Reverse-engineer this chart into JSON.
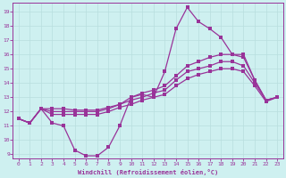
{
  "xlabel": "Windchill (Refroidissement éolien,°C)",
  "ylabel": "",
  "xlim_min": -0.5,
  "xlim_max": 23.5,
  "ylim_min": 8.7,
  "ylim_max": 19.6,
  "yticks": [
    9,
    10,
    11,
    12,
    13,
    14,
    15,
    16,
    17,
    18,
    19
  ],
  "xticks": [
    0,
    1,
    2,
    3,
    4,
    5,
    6,
    7,
    8,
    9,
    10,
    11,
    12,
    13,
    14,
    15,
    16,
    17,
    18,
    19,
    20,
    21,
    22,
    23
  ],
  "background_color": "#cef0f0",
  "line_color": "#993399",
  "grid_color": "#b8dede",
  "line1_y": [
    11.5,
    11.2,
    12.2,
    11.2,
    11.0,
    9.3,
    8.9,
    8.9,
    9.5,
    11.0,
    13.0,
    13.2,
    13.0,
    14.8,
    17.8,
    19.3,
    18.3,
    17.8,
    17.2,
    16.0,
    16.0,
    14.2,
    12.8,
    13.0
  ],
  "line2_y": [
    11.5,
    11.2,
    12.2,
    12.2,
    12.2,
    12.1,
    12.1,
    12.1,
    12.3,
    12.5,
    13.0,
    13.3,
    13.5,
    13.8,
    14.5,
    15.2,
    15.5,
    15.8,
    16.0,
    16.0,
    15.8,
    14.2,
    12.8,
    13.0
  ],
  "line3_y": [
    11.5,
    11.2,
    12.2,
    12.0,
    12.0,
    12.0,
    12.0,
    12.0,
    12.2,
    12.5,
    12.8,
    13.0,
    13.3,
    13.5,
    14.2,
    14.8,
    15.0,
    15.2,
    15.5,
    15.5,
    15.2,
    14.0,
    12.8,
    13.0
  ],
  "line4_y": [
    11.5,
    11.2,
    12.2,
    11.8,
    11.8,
    11.8,
    11.8,
    11.8,
    12.0,
    12.3,
    12.5,
    12.8,
    13.0,
    13.2,
    13.8,
    14.3,
    14.6,
    14.8,
    15.0,
    15.0,
    14.8,
    13.8,
    12.7,
    13.0
  ]
}
